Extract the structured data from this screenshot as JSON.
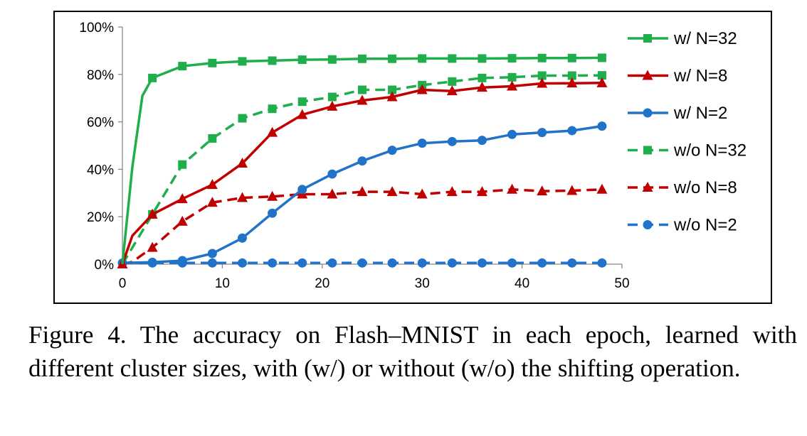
{
  "chart_data": {
    "type": "line",
    "title": "",
    "xlabel": "",
    "ylabel": "",
    "xlim": [
      0,
      50
    ],
    "ylim": [
      0,
      100
    ],
    "x_ticks": [
      0,
      10,
      20,
      30,
      40,
      50
    ],
    "y_ticks": [
      0,
      20,
      40,
      60,
      80,
      100
    ],
    "y_tick_labels": [
      "0%",
      "20%",
      "40%",
      "60%",
      "80%",
      "100%"
    ],
    "grid": false,
    "legend_position": "right",
    "series": [
      {
        "name": "w/ N=32",
        "color": "#1fae4b",
        "dash": "solid",
        "marker": "square",
        "x": [
          0,
          1,
          2,
          3,
          6,
          9,
          12,
          15,
          18,
          21,
          24,
          27,
          30,
          33,
          36,
          39,
          42,
          45,
          48
        ],
        "y": [
          0,
          41,
          71,
          78.5,
          83.5,
          84.8,
          85.5,
          85.8,
          86.2,
          86.3,
          86.6,
          86.6,
          86.7,
          86.7,
          86.7,
          86.8,
          86.9,
          86.9,
          87.0
        ],
        "marker_x": [
          3,
          6,
          9,
          12,
          15,
          18,
          21,
          24,
          27,
          30,
          33,
          36,
          39,
          42,
          45,
          48
        ]
      },
      {
        "name": "w/ N=8",
        "color": "#c00000",
        "dash": "solid",
        "marker": "triangle",
        "x": [
          0,
          1,
          3,
          6,
          9,
          12,
          15,
          18,
          21,
          24,
          27,
          30,
          33,
          36,
          39,
          42,
          45,
          48
        ],
        "y": [
          0,
          12,
          21,
          27.5,
          33.5,
          42.5,
          55.5,
          63,
          66.5,
          69,
          70.5,
          73.5,
          73,
          74.5,
          75,
          76.2,
          76.3,
          76.4
        ],
        "marker_x": [
          0,
          3,
          6,
          9,
          12,
          15,
          18,
          21,
          24,
          27,
          30,
          33,
          36,
          39,
          42,
          45,
          48
        ]
      },
      {
        "name": "w/ N=2",
        "color": "#2173c9",
        "dash": "solid",
        "marker": "circle",
        "x": [
          0,
          3,
          6,
          9,
          12,
          15,
          18,
          21,
          24,
          27,
          30,
          33,
          36,
          39,
          42,
          45,
          48
        ],
        "y": [
          0.5,
          0.8,
          1.5,
          4.5,
          11,
          21.5,
          31.5,
          38,
          43.5,
          48,
          51,
          51.7,
          52.2,
          54.7,
          55.5,
          56.3,
          58.2
        ],
        "marker_x": [
          0,
          3,
          6,
          9,
          12,
          15,
          18,
          21,
          24,
          27,
          30,
          33,
          36,
          39,
          42,
          45,
          48
        ]
      },
      {
        "name": "w/o N=32",
        "color": "#1fae4b",
        "dash": "dashed",
        "marker": "square",
        "x": [
          0,
          3,
          6,
          9,
          12,
          15,
          18,
          21,
          24,
          27,
          30,
          33,
          36,
          39,
          42,
          45,
          48
        ],
        "y": [
          0,
          21,
          42,
          53,
          61.5,
          65.5,
          68.5,
          70.5,
          73.5,
          73.5,
          75.5,
          77,
          78.5,
          78.8,
          79.5,
          79.5,
          79.6
        ],
        "marker_x": [
          3,
          6,
          9,
          12,
          15,
          18,
          21,
          24,
          27,
          30,
          33,
          36,
          39,
          42,
          45,
          48
        ]
      },
      {
        "name": "w/o N=8",
        "color": "#c00000",
        "dash": "dashed",
        "marker": "triangle",
        "x": [
          0,
          1,
          3,
          6,
          9,
          12,
          15,
          18,
          21,
          24,
          27,
          30,
          33,
          36,
          39,
          42,
          45,
          48
        ],
        "y": [
          0,
          1,
          7,
          18,
          26,
          28,
          28.5,
          29.5,
          29.5,
          30.5,
          30.5,
          29.5,
          30.5,
          30.5,
          31.5,
          30.8,
          31.0,
          31.5
        ],
        "marker_x": [
          3,
          6,
          9,
          12,
          15,
          18,
          21,
          24,
          27,
          30,
          33,
          36,
          39,
          42,
          45,
          48
        ]
      },
      {
        "name": "w/o N=2",
        "color": "#2173c9",
        "dash": "dashed",
        "marker": "circle",
        "x": [
          0,
          3,
          6,
          9,
          12,
          15,
          18,
          21,
          24,
          27,
          30,
          33,
          36,
          39,
          42,
          45,
          48
        ],
        "y": [
          0.5,
          0.5,
          0.5,
          0.5,
          0.5,
          0.5,
          0.5,
          0.5,
          0.5,
          0.5,
          0.5,
          0.5,
          0.5,
          0.5,
          0.5,
          0.5,
          0.5
        ],
        "marker_x": [
          3,
          6,
          9,
          12,
          15,
          18,
          21,
          24,
          27,
          30,
          33,
          36,
          39,
          42,
          45,
          48
        ]
      }
    ]
  },
  "caption": {
    "text": "Figure 4. The accuracy on Flash–MNIST in each epoch, learned with different cluster sizes, with (w/) or without (w/o) the shifting operation."
  }
}
